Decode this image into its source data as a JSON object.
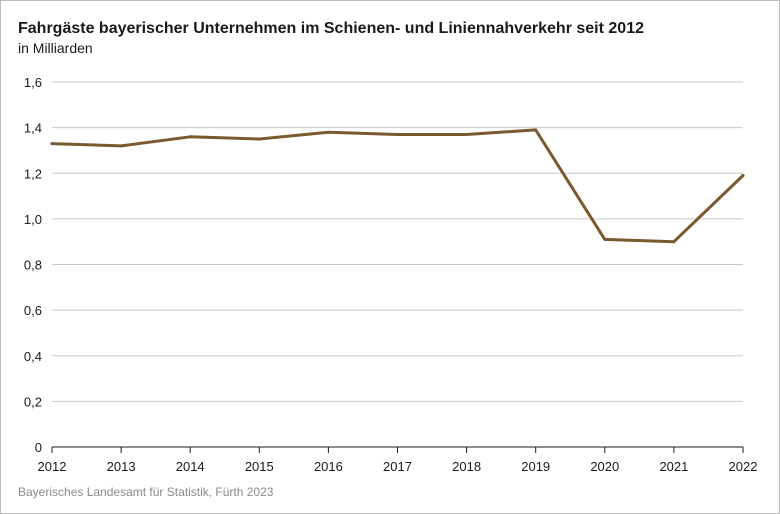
{
  "header": {
    "title": "Fahrgäste bayerischer Unternehmen im Schienen- und Liniennahverkehr seit 2012",
    "subtitle": "in Milliarden"
  },
  "footer": {
    "source": "Bayerisches Landesamt für Statistik, Fürth 2023"
  },
  "chart_data": {
    "type": "line",
    "title": "Fahrgäste bayerischer Unternehmen im Schienen- und Liniennahverkehr seit 2012",
    "subtitle": "in Milliarden",
    "xlabel": "",
    "ylabel": "",
    "x": [
      "2012",
      "2013",
      "2014",
      "2015",
      "2016",
      "2017",
      "2018",
      "2019",
      "2020",
      "2021",
      "2022"
    ],
    "series": [
      {
        "values": [
          1.33,
          1.32,
          1.36,
          1.35,
          1.38,
          1.37,
          1.37,
          1.39,
          0.91,
          0.9,
          1.19
        ],
        "color": "#7a5a2e"
      }
    ],
    "ylim": [
      0,
      1.6
    ],
    "yticks": [
      0,
      0.2,
      0.4,
      0.6,
      0.8,
      1.0,
      1.2,
      1.4,
      1.6
    ],
    "ytick_labels": [
      "0",
      "0,2",
      "0,4",
      "0,6",
      "0,8",
      "1,0",
      "1,2",
      "1,4",
      "1,6"
    ],
    "grid": true,
    "legend": "none",
    "colors": {
      "grid": "#c8c8c8",
      "axis": "#1a1a1a"
    }
  }
}
